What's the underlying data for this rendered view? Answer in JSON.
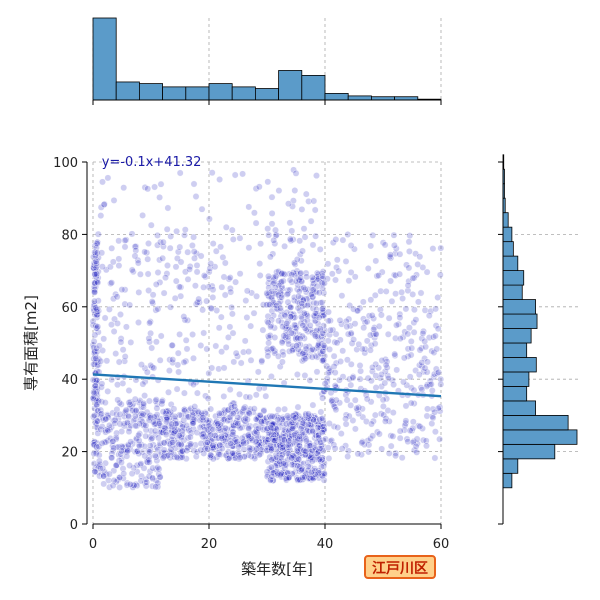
{
  "badge": {
    "label": "江戸川区",
    "bg": "#ffd08a",
    "border": "#e8621a",
    "text": "#c02000"
  },
  "chart_data": [
    {
      "type": "scatter",
      "role": "main",
      "xlabel": "築年数[年]",
      "ylabel": "専有面積[m2]",
      "xlim": [
        0,
        60
      ],
      "ylim": [
        0,
        100
      ],
      "xticks": [
        0,
        20,
        40,
        60
      ],
      "yticks": [
        0,
        20,
        40,
        60,
        80,
        100
      ],
      "grid": true,
      "point_color": "#2020c0",
      "point_alpha": 0.22,
      "regression": {
        "equation": "y=-0.1x+41.32",
        "slope": -0.1,
        "intercept": 41.32,
        "color": "#1f77b4",
        "text_color": "#1a1aa6"
      },
      "clusters": [
        {
          "x": [
            0,
            1
          ],
          "y": [
            14,
            78
          ],
          "n": 140
        },
        {
          "x": [
            1,
            12
          ],
          "y": [
            10,
            34
          ],
          "n": 220
        },
        {
          "x": [
            12,
            30
          ],
          "y": [
            18,
            32
          ],
          "n": 380
        },
        {
          "x": [
            30,
            40
          ],
          "y": [
            12,
            30
          ],
          "n": 420
        },
        {
          "x": [
            30,
            40
          ],
          "y": [
            45,
            70
          ],
          "n": 260
        },
        {
          "x": [
            0,
            60
          ],
          "y": [
            20,
            80
          ],
          "n": 700
        },
        {
          "x": [
            40,
            60
          ],
          "y": [
            18,
            60
          ],
          "n": 160
        },
        {
          "x": [
            0,
            40
          ],
          "y": [
            80,
            98
          ],
          "n": 60
        }
      ]
    },
    {
      "type": "bar",
      "role": "top-histogram",
      "xlim": [
        0,
        60
      ],
      "bin_width": 4,
      "bins": [
        0,
        4,
        8,
        12,
        16,
        20,
        24,
        28,
        32,
        36,
        40,
        44,
        48,
        52,
        56
      ],
      "counts": [
        100,
        22,
        20,
        16,
        16,
        20,
        16,
        14,
        36,
        30,
        8,
        5,
        4,
        4,
        1
      ],
      "ylim": [
        0,
        100
      ],
      "color": "#5b9bc9",
      "grid": true
    },
    {
      "type": "bar",
      "role": "right-histogram",
      "orientation": "horizontal",
      "ylim": [
        0,
        100
      ],
      "bin_width": 4,
      "bins": [
        10,
        14,
        18,
        22,
        26,
        30,
        34,
        38,
        42,
        46,
        50,
        54,
        58,
        62,
        66,
        70,
        74,
        78,
        82,
        86,
        90,
        94,
        98
      ],
      "counts": [
        12,
        20,
        70,
        100,
        88,
        44,
        32,
        35,
        45,
        32,
        38,
        46,
        44,
        26,
        28,
        20,
        14,
        12,
        7,
        3,
        2,
        2,
        1
      ],
      "xlim": [
        0,
        100
      ],
      "color": "#5b9bc9",
      "grid": true
    }
  ]
}
